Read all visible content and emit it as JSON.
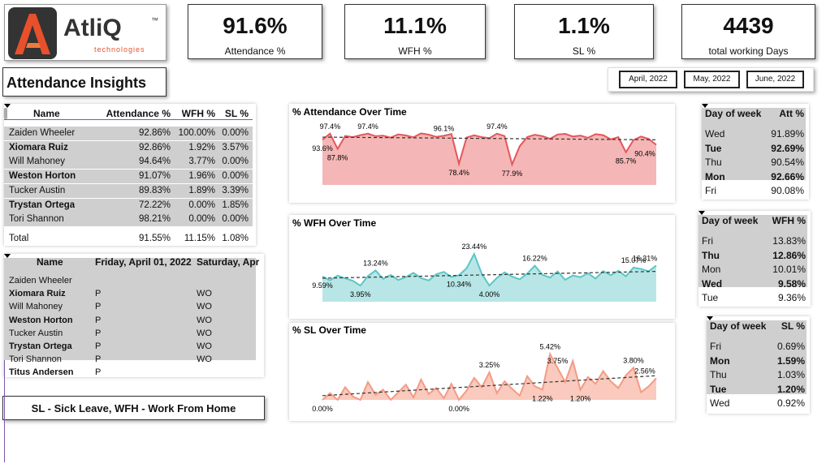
{
  "logo": {
    "name": "AtliQ",
    "tm": "™",
    "tagline": "technologies"
  },
  "title": "Attendance Insights",
  "kpis": [
    {
      "value": "91.6%",
      "label": "Attendance %"
    },
    {
      "value": "11.1%",
      "label": "WFH %"
    },
    {
      "value": "1.1%",
      "label": "SL %"
    },
    {
      "value": "4439",
      "label": "total working Days"
    }
  ],
  "months": [
    "April, 2022",
    "May, 2022",
    "June, 2022"
  ],
  "table1": {
    "columns": [
      "Name",
      "Attendance %",
      "WFH %",
      "SL %"
    ],
    "rows": [
      [
        "Zaiden Wheeler",
        "92.86%",
        "100.00%",
        "0.00%"
      ],
      [
        "Xiomara Ruiz",
        "92.86%",
        "1.92%",
        "3.57%"
      ],
      [
        "Will Mahoney",
        "94.64%",
        "3.77%",
        "0.00%"
      ],
      [
        "Weston Horton",
        "91.07%",
        "1.96%",
        "0.00%"
      ],
      [
        "Tucker Austin",
        "89.83%",
        "1.89%",
        "3.39%"
      ],
      [
        "Trystan Ortega",
        "72.22%",
        "0.00%",
        "1.85%"
      ],
      [
        "Tori Shannon",
        "98.21%",
        "0.00%",
        "0.00%"
      ]
    ],
    "total": [
      "Total",
      "91.55%",
      "11.15%",
      "1.08%"
    ]
  },
  "table2": {
    "columns": [
      "Name",
      "Friday, April 01, 2022",
      "Saturday, Apr"
    ],
    "rows": [
      [
        "Zaiden Wheeler"
      ],
      [
        "Xiomara Ruiz",
        "P",
        "WO"
      ],
      [
        "Will Mahoney",
        "P",
        "WO"
      ],
      [
        "Weston Horton",
        "P",
        "WO"
      ],
      [
        "Tucker Austin",
        "P",
        "WO"
      ],
      [
        "Trystan Ortega",
        "P",
        "WO"
      ],
      [
        "Tori Shannon",
        "P",
        "WO"
      ],
      [
        "Titus Andersen",
        "P"
      ]
    ]
  },
  "weekday_tables": [
    {
      "columns": [
        "Day of week",
        "Att %"
      ],
      "rows": [
        [
          "Wed",
          "91.89%"
        ],
        [
          "Tue",
          "92.69%"
        ],
        [
          "Thu",
          "90.54%"
        ],
        [
          "Mon",
          "92.66%"
        ],
        [
          "Fri",
          "90.08%"
        ]
      ]
    },
    {
      "columns": [
        "Day of week",
        "WFH %"
      ],
      "rows": [
        [
          "Fri",
          "13.83%"
        ],
        [
          "Thu",
          "12.86%"
        ],
        [
          "Mon",
          "10.01%"
        ],
        [
          "Wed",
          "9.58%"
        ],
        [
          "Tue",
          "9.36%"
        ]
      ]
    },
    {
      "columns": [
        "Day of week",
        "SL %"
      ],
      "rows": [
        [
          "Fri",
          "0.69%"
        ],
        [
          "Mon",
          "1.59%"
        ],
        [
          "Thu",
          "1.03%"
        ],
        [
          "Tue",
          "1.20%"
        ],
        [
          "Wed",
          "0.92%"
        ]
      ]
    }
  ],
  "footer": "SL - Sick Leave, WFH - Work From Home",
  "chart_data": [
    {
      "type": "area",
      "title": "% Attendance Over Time",
      "line_color": "#e5575a",
      "fill_color": "#f4b6b6",
      "ylim": [
        65,
        105
      ],
      "values": [
        93.6,
        97.4,
        87.8,
        96.0,
        95.2,
        96.5,
        97.4,
        95.8,
        96.2,
        94.9,
        97.0,
        96.3,
        95.1,
        97.6,
        96.8,
        95.4,
        96.1,
        97.2,
        78.4,
        95.0,
        96.4,
        95.2,
        94.6,
        97.4,
        95.9,
        77.9,
        89.5,
        95.3,
        96.7,
        95.8,
        94.2,
        96.9,
        97.3,
        95.6,
        96.2,
        94.8,
        97.1,
        96.5,
        93.8,
        95.2,
        85.7,
        93.4,
        95.6,
        94.1,
        90.4
      ],
      "value_labels": [
        "93.6%",
        "97.4%",
        "87.8%",
        null,
        null,
        null,
        "97.4%",
        null,
        null,
        null,
        null,
        null,
        null,
        null,
        null,
        null,
        "96.1%",
        null,
        "78.4%",
        null,
        null,
        null,
        null,
        "97.4%",
        null,
        "77.9%",
        null,
        null,
        null,
        null,
        null,
        null,
        null,
        null,
        null,
        null,
        null,
        null,
        null,
        null,
        "85.7%",
        null,
        null,
        null,
        "90.4%"
      ]
    },
    {
      "type": "area",
      "title": "% WFH Over Time",
      "line_color": "#5cc6c6",
      "fill_color": "#b8e6e6",
      "ylim": [
        -6,
        30
      ],
      "values": [
        9.59,
        7.2,
        10.1,
        8.4,
        6.9,
        3.95,
        9.8,
        13.24,
        8.1,
        10.5,
        7.4,
        9.2,
        11.8,
        8.6,
        7.1,
        10.9,
        12.4,
        9.3,
        10.34,
        14.6,
        23.44,
        11.2,
        4.0,
        8.7,
        12.1,
        9.5,
        7.8,
        11.4,
        16.22,
        10.6,
        8.9,
        12.7,
        7.5,
        10.2,
        9.1,
        11.6,
        8.3,
        12.9,
        10.4,
        13.1,
        9.7,
        15.07,
        14.2,
        12.8,
        16.31
      ],
      "value_labels": [
        "9.59%",
        null,
        null,
        null,
        null,
        "3.95%",
        null,
        "13.24%",
        null,
        null,
        null,
        null,
        null,
        null,
        null,
        null,
        null,
        null,
        "10.34%",
        null,
        "23.44%",
        null,
        "4.00%",
        null,
        null,
        null,
        null,
        null,
        "16.22%",
        null,
        null,
        null,
        null,
        null,
        null,
        null,
        null,
        null,
        null,
        null,
        null,
        "15.07%",
        null,
        null,
        "16.31%"
      ]
    },
    {
      "type": "area",
      "title": "% SL Over Time",
      "line_color": "#f59a84",
      "fill_color": "#f9cabd",
      "ylim": [
        0,
        7
      ],
      "values": [
        0.0,
        0.8,
        0.0,
        1.5,
        0.4,
        0.0,
        2.1,
        0.6,
        1.2,
        0.0,
        0.9,
        1.8,
        0.3,
        2.4,
        0.7,
        1.4,
        0.2,
        1.9,
        0.0,
        1.1,
        2.6,
        1.5,
        3.25,
        0.8,
        2.2,
        1.3,
        0.5,
        2.8,
        1.6,
        1.22,
        5.42,
        3.75,
        2.1,
        4.6,
        1.2,
        2.7,
        1.9,
        3.4,
        2.2,
        1.4,
        2.9,
        3.8,
        0.9,
        1.6,
        2.56
      ],
      "value_labels": [
        "0.00%",
        null,
        null,
        null,
        null,
        null,
        null,
        null,
        null,
        null,
        null,
        null,
        null,
        null,
        null,
        null,
        null,
        null,
        "0.00%",
        null,
        null,
        null,
        "3.25%",
        null,
        null,
        null,
        null,
        null,
        null,
        "1.22%",
        "5.42%",
        "3.75%",
        null,
        null,
        "1.20%",
        null,
        null,
        null,
        null,
        null,
        null,
        "3.80%",
        null,
        null,
        "2.56%"
      ]
    }
  ]
}
